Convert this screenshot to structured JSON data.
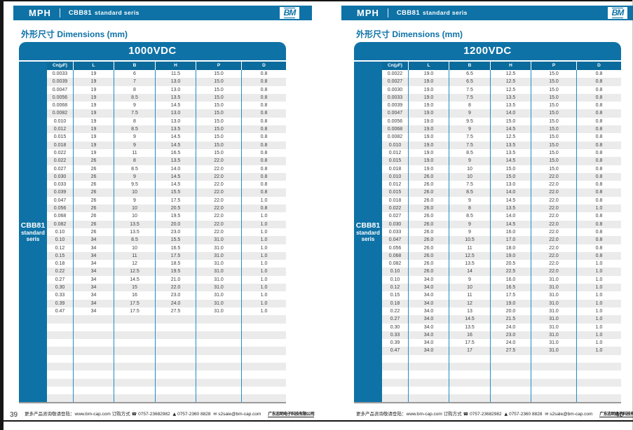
{
  "doc": {
    "brand": "MPH",
    "series_title": "CBB81 standard seris",
    "logo_text": "BM",
    "section_title": "外形尺寸 Dimensions (mm)"
  },
  "footer": {
    "more_info": "更多产品咨询敬请登陆：",
    "website": "www.bm-cap.com",
    "order_label": "订购方式",
    "phone_icon": "☎",
    "phone1": "0757-23682982",
    "fax_icon": "▲",
    "phone2": "0757-2360 8828",
    "mail_icon": "✉",
    "email": "s2sale@bm-cap.com",
    "company": "广东志明电子科技有限公司"
  },
  "pages": [
    {
      "page_number": "39",
      "table": {
        "title": "1000VDC",
        "sidebar": [
          "CBB81",
          "standard",
          "seris"
        ],
        "columns": [
          "Cn(μF)",
          "L",
          "B",
          "H",
          "P",
          "D"
        ],
        "filler_rows": 11,
        "rows": [
          [
            "0.0033",
            "19",
            "6",
            "11.5",
            "15.0",
            "0.8"
          ],
          [
            "0.0039",
            "19",
            "7",
            "13.0",
            "15.0",
            "0.8"
          ],
          [
            "0.0047",
            "19",
            "8",
            "13.0",
            "15.0",
            "0.8"
          ],
          [
            "0.0056",
            "19",
            "8.5",
            "13.5",
            "15.0",
            "0.8"
          ],
          [
            "0.0068",
            "19",
            "9",
            "14.5",
            "15.0",
            "0.8"
          ],
          [
            "0.0082",
            "19",
            "7.5",
            "13.0",
            "15.0",
            "0.8"
          ],
          [
            "0.010",
            "19",
            "8",
            "13.0",
            "15.0",
            "0.8"
          ],
          [
            "0.012",
            "19",
            "8.5",
            "13.5",
            "15.0",
            "0.8"
          ],
          [
            "0.015",
            "19",
            "9",
            "14.5",
            "15.0",
            "0.8"
          ],
          [
            "0.018",
            "19",
            "9",
            "14.5",
            "15.0",
            "0.8"
          ],
          [
            "0.022",
            "19",
            "11",
            "16.5",
            "15.0",
            "0.8"
          ],
          [
            "0.022",
            "26",
            "8",
            "13.5",
            "22.0",
            "0.8"
          ],
          [
            "0.027",
            "26",
            "8.5",
            "14.0",
            "22.0",
            "0.8"
          ],
          [
            "0.030",
            "26",
            "9",
            "14.5",
            "22.0",
            "0.8"
          ],
          [
            "0.033",
            "26",
            "9.5",
            "14.5",
            "22.0",
            "0.8"
          ],
          [
            "0.039",
            "26",
            "10",
            "15.5",
            "22.0",
            "0.8"
          ],
          [
            "0.047",
            "26",
            "9",
            "17.5",
            "22.0",
            "1.0"
          ],
          [
            "0.056",
            "26",
            "10",
            "20.5",
            "22.0",
            "0.8"
          ],
          [
            "0.068",
            "26",
            "10",
            "19.5",
            "22.0",
            "1.0"
          ],
          [
            "0.082",
            "26",
            "13.5",
            "20.0",
            "22.0",
            "1.0"
          ],
          [
            "0.10",
            "26",
            "13.5",
            "23.0",
            "22.0",
            "1.0"
          ],
          [
            "0.10",
            "34",
            "8.5",
            "15.5",
            "31.0",
            "1.0"
          ],
          [
            "0.12",
            "34",
            "10",
            "16.5",
            "31.0",
            "1.0"
          ],
          [
            "0.15",
            "34",
            "11",
            "17.5",
            "31.0",
            "1.0"
          ],
          [
            "0.18",
            "34",
            "12",
            "18.5",
            "31.0",
            "1.0"
          ],
          [
            "0.22",
            "34",
            "12.5",
            "19.5",
            "31.0",
            "1.0"
          ],
          [
            "0.27",
            "34",
            "14.5",
            "21.0",
            "31.0",
            "1.0"
          ],
          [
            "0.30",
            "34",
            "15",
            "22.0",
            "31.0",
            "1.0"
          ],
          [
            "0.33",
            "34",
            "16",
            "23.0",
            "31.0",
            "1.0"
          ],
          [
            "0.39",
            "34",
            "17.5",
            "24.0",
            "31.0",
            "1.0"
          ],
          [
            "0.47",
            "34",
            "17.5",
            "27.5",
            "31.0",
            "1.0"
          ]
        ]
      }
    },
    {
      "page_number": "40",
      "table": {
        "title": "1200VDC",
        "sidebar": [
          "CBB81",
          "standard",
          "seris"
        ],
        "columns": [
          "Cn(μF)",
          "L",
          "B",
          "H",
          "P",
          "D"
        ],
        "filler_rows": 6,
        "rows": [
          [
            "0.0022",
            "19.0",
            "6.5",
            "12.5",
            "15.0",
            "0.8"
          ],
          [
            "0.0027",
            "19.0",
            "6.5",
            "12.5",
            "15.0",
            "0.8"
          ],
          [
            "0.0030",
            "19.0",
            "7.5",
            "12.5",
            "15.0",
            "0.8"
          ],
          [
            "0.0033",
            "19.0",
            "7.5",
            "13.5",
            "15.0",
            "0.8"
          ],
          [
            "0.0039",
            "19.0",
            "8",
            "13.5",
            "15.0",
            "0.8"
          ],
          [
            "0.0047",
            "19.0",
            "9",
            "14.0",
            "15.0",
            "0.8"
          ],
          [
            "0.0056",
            "19.0",
            "9.5",
            "15.0",
            "15.0",
            "0.8"
          ],
          [
            "0.0068",
            "19.0",
            "9",
            "14.5",
            "15.0",
            "0.8"
          ],
          [
            "0.0082",
            "19.0",
            "7.5",
            "12.5",
            "15.0",
            "0.8"
          ],
          [
            "0.010",
            "19.0",
            "7.5",
            "13.5",
            "15.0",
            "0.8"
          ],
          [
            "0.012",
            "19.0",
            "8.5",
            "13.5",
            "15.0",
            "0.8"
          ],
          [
            "0.015",
            "19.0",
            "9",
            "14.5",
            "15.0",
            "0.8"
          ],
          [
            "0.018",
            "19.0",
            "10",
            "15.0",
            "15.0",
            "0.8"
          ],
          [
            "0.010",
            "26.0",
            "10",
            "15.0",
            "22.0",
            "0.8"
          ],
          [
            "0.012",
            "26.0",
            "7.5",
            "13.0",
            "22.0",
            "0.8"
          ],
          [
            "0.015",
            "26.0",
            "8.5",
            "14.0",
            "22.0",
            "0.8"
          ],
          [
            "0.018",
            "26.0",
            "9",
            "14.5",
            "22.0",
            "0.8"
          ],
          [
            "0.022",
            "26.0",
            "8",
            "13.5",
            "22.0",
            "1.0"
          ],
          [
            "0.027",
            "26.0",
            "8.5",
            "14.0",
            "22.0",
            "0.8"
          ],
          [
            "0.030",
            "26.0",
            "9",
            "14.5",
            "22.0",
            "0.8"
          ],
          [
            "0.033",
            "26.0",
            "9",
            "16.0",
            "22.0",
            "0.8"
          ],
          [
            "0.047",
            "26.0",
            "10.5",
            "17.0",
            "22.0",
            "0.8"
          ],
          [
            "0.056",
            "26.0",
            "11",
            "18.0",
            "22.0",
            "0.8"
          ],
          [
            "0.068",
            "26.0",
            "12.5",
            "19.0",
            "22.0",
            "0.8"
          ],
          [
            "0.082",
            "26.0",
            "13.5",
            "20.5",
            "22.0",
            "1.0"
          ],
          [
            "0.10",
            "26.0",
            "14",
            "22.5",
            "22.0",
            "1.0"
          ],
          [
            "0.10",
            "34.0",
            "9",
            "16.0",
            "31.0",
            "1.0"
          ],
          [
            "0.12",
            "34.0",
            "10",
            "16.5",
            "31.0",
            "1.0"
          ],
          [
            "0.15",
            "34.0",
            "11",
            "17.5",
            "31.0",
            "1.0"
          ],
          [
            "0.18",
            "34.0",
            "12",
            "19.0",
            "31.0",
            "1.0"
          ],
          [
            "0.22",
            "34.0",
            "13",
            "20.0",
            "31.0",
            "1.0"
          ],
          [
            "0.27",
            "34.0",
            "14.5",
            "21.5",
            "31.0",
            "1.0"
          ],
          [
            "0.30",
            "34.0",
            "13.5",
            "24.0",
            "31.0",
            "1.0"
          ],
          [
            "0.33",
            "34.0",
            "16",
            "23.0",
            "31.0",
            "1.0"
          ],
          [
            "0.39",
            "34.0",
            "17.5",
            "24.0",
            "31.0",
            "1.0"
          ],
          [
            "0.47",
            "34.0",
            "17",
            "27.5",
            "31.0",
            "1.0"
          ]
        ]
      }
    }
  ]
}
